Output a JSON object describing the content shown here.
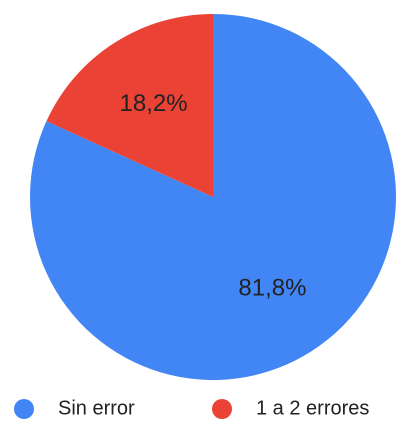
{
  "chart_data": {
    "type": "pie",
    "categories": [
      "Sin error",
      "1 a 2 errores"
    ],
    "values": [
      81.8,
      18.2
    ],
    "value_labels": [
      "81,8%",
      "18,2%"
    ],
    "colors": [
      "#4285f4",
      "#ea4335"
    ]
  }
}
